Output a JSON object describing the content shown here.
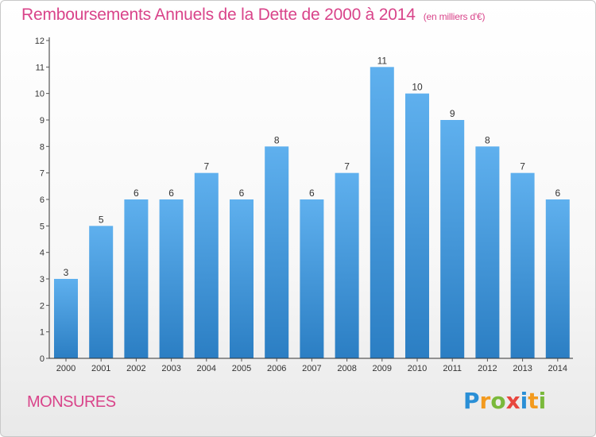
{
  "header": {
    "title": "Remboursements Annuels de la Dette de 2000 à 2014",
    "subtitle": "(en milliers d'€)"
  },
  "commune": "MONSURES",
  "logo": {
    "text": "Proxiti",
    "letters": [
      {
        "ch": "P",
        "color": "#2a8fd6"
      },
      {
        "ch": "r",
        "color": "#f39a1e"
      },
      {
        "ch": "o",
        "color": "#7ab93b"
      },
      {
        "ch": "x",
        "color": "#e8463e"
      },
      {
        "ch": "i",
        "color": "#2a8fd6"
      },
      {
        "ch": "t",
        "color": "#f39a1e"
      },
      {
        "ch": "i",
        "color": "#7ab93b"
      }
    ]
  },
  "colors": {
    "accent": "#d9448a",
    "bar_top": "#5fb0ee",
    "bar_bottom": "#2b7ec3",
    "axis": "#333333",
    "grid_tick": "#555555"
  },
  "chart_data": {
    "type": "bar",
    "categories": [
      "2000",
      "2001",
      "2002",
      "2003",
      "2004",
      "2005",
      "2006",
      "2007",
      "2008",
      "2009",
      "2010",
      "2011",
      "2012",
      "2013",
      "2014"
    ],
    "values": [
      3,
      5,
      6,
      6,
      7,
      6,
      8,
      6,
      7,
      11,
      10,
      9,
      8,
      7,
      6
    ],
    "ylim": [
      0,
      12
    ],
    "yticks": [
      0,
      1,
      2,
      3,
      4,
      5,
      6,
      7,
      8,
      9,
      10,
      11,
      12
    ],
    "grid": false,
    "data_labels": true
  }
}
